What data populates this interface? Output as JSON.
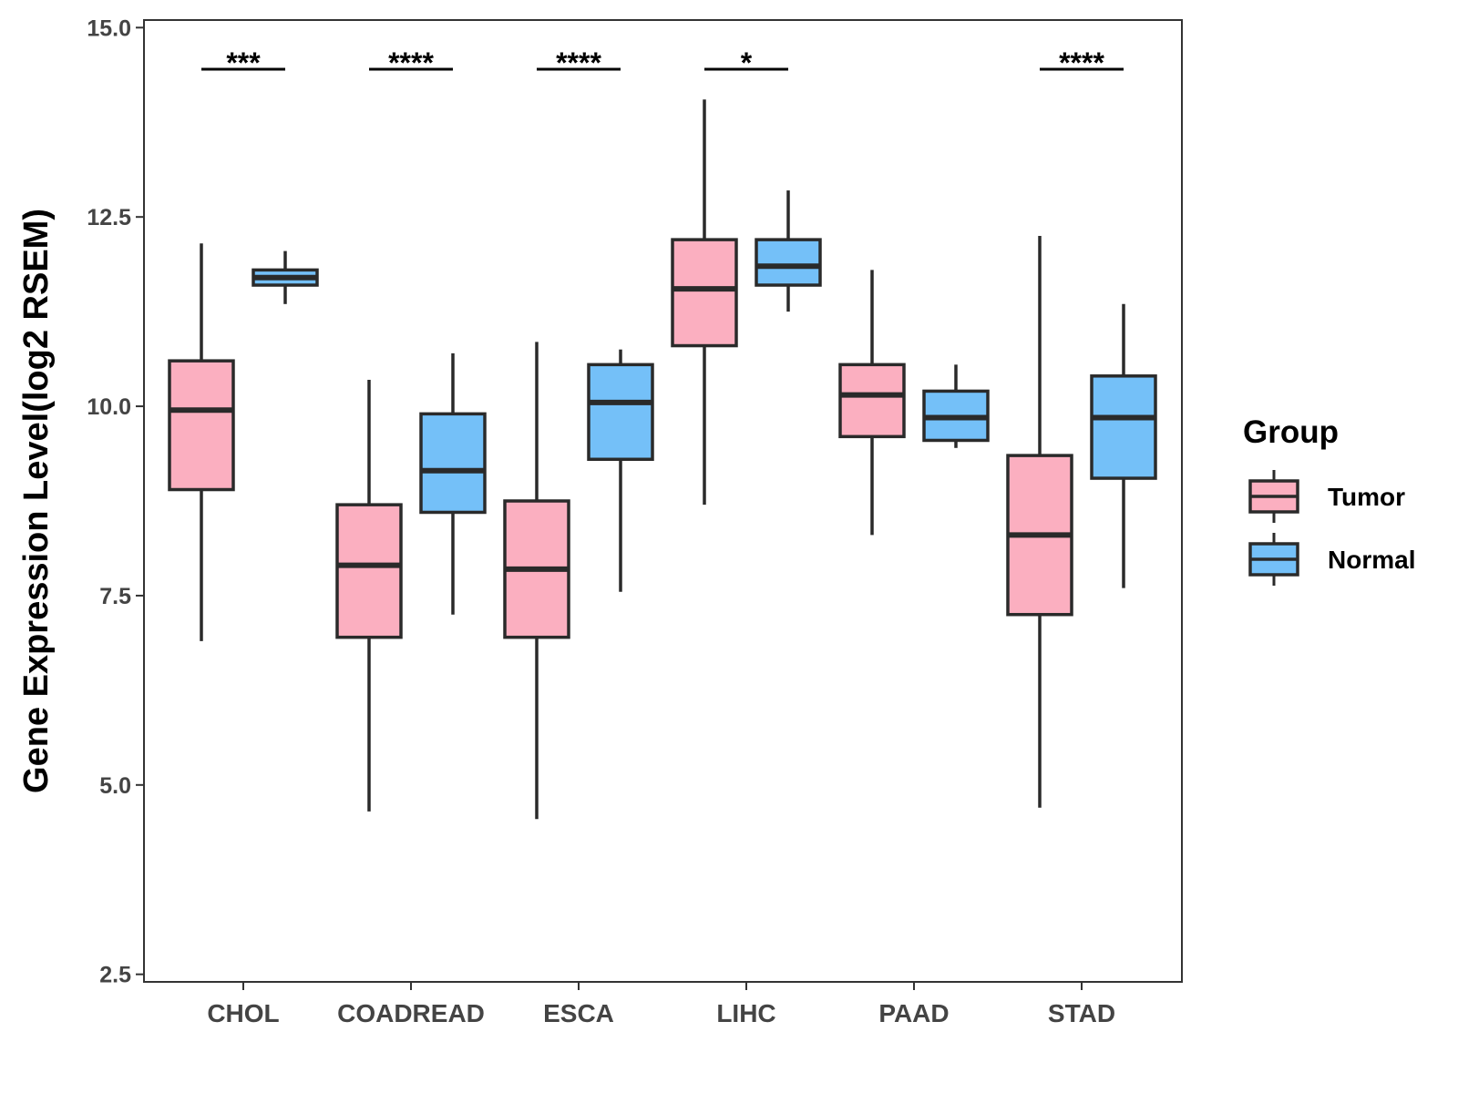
{
  "chart_data": {
    "type": "boxplot",
    "title": "",
    "xlabel": "",
    "ylabel": "Gene Expression Level(log2 RSEM)",
    "ylim": [
      2.4,
      15.1
    ],
    "yticks": [
      2.5,
      5.0,
      7.5,
      10.0,
      12.5,
      15.0
    ],
    "ytick_labels": [
      "2.5",
      "5.0",
      "7.5",
      "10.0",
      "12.5",
      "15.0"
    ],
    "categories": [
      "CHOL",
      "COADREAD",
      "ESCA",
      "LIHC",
      "PAAD",
      "STAD"
    ],
    "legend": {
      "title": "Group",
      "position": "right",
      "entries": [
        {
          "name": "Tumor",
          "color": "#FBAFC0"
        },
        {
          "name": "Normal",
          "color": "#74C0F8"
        }
      ]
    },
    "series": [
      {
        "name": "Tumor",
        "color": "#FBAFC0",
        "boxes": [
          {
            "category": "CHOL",
            "min": 6.9,
            "q1": 8.9,
            "median": 9.95,
            "q3": 10.6,
            "max": 12.15
          },
          {
            "category": "COADREAD",
            "min": 4.65,
            "q1": 6.95,
            "median": 7.9,
            "q3": 8.7,
            "max": 10.35
          },
          {
            "category": "ESCA",
            "min": 4.55,
            "q1": 6.95,
            "median": 7.85,
            "q3": 8.75,
            "max": 10.85
          },
          {
            "category": "LIHC",
            "min": 8.7,
            "q1": 10.8,
            "median": 11.55,
            "q3": 12.2,
            "max": 14.05
          },
          {
            "category": "PAAD",
            "min": 8.3,
            "q1": 9.6,
            "median": 10.15,
            "q3": 10.55,
            "max": 11.8
          },
          {
            "category": "STAD",
            "min": 4.7,
            "q1": 7.25,
            "median": 8.3,
            "q3": 9.35,
            "max": 12.25
          }
        ]
      },
      {
        "name": "Normal",
        "color": "#74C0F8",
        "boxes": [
          {
            "category": "CHOL",
            "min": 11.35,
            "q1": 11.6,
            "median": 11.7,
            "q3": 11.8,
            "max": 12.05
          },
          {
            "category": "COADREAD",
            "min": 7.25,
            "q1": 8.6,
            "median": 9.15,
            "q3": 9.9,
            "max": 10.7
          },
          {
            "category": "ESCA",
            "min": 7.55,
            "q1": 9.3,
            "median": 10.05,
            "q3": 10.55,
            "max": 10.75
          },
          {
            "category": "LIHC",
            "min": 11.25,
            "q1": 11.6,
            "median": 11.85,
            "q3": 12.2,
            "max": 12.85
          },
          {
            "category": "PAAD",
            "min": 9.45,
            "q1": 9.55,
            "median": 9.85,
            "q3": 10.2,
            "max": 10.55
          },
          {
            "category": "STAD",
            "min": 7.6,
            "q1": 9.05,
            "median": 9.85,
            "q3": 10.4,
            "max": 11.35
          }
        ]
      }
    ],
    "annotations": [
      {
        "category": "CHOL",
        "label": "***",
        "y": 14.45
      },
      {
        "category": "COADREAD",
        "label": "****",
        "y": 14.45
      },
      {
        "category": "ESCA",
        "label": "****",
        "y": 14.45
      },
      {
        "category": "LIHC",
        "label": "*",
        "y": 14.45
      },
      {
        "category": "STAD",
        "label": "****",
        "y": 14.45
      }
    ]
  }
}
